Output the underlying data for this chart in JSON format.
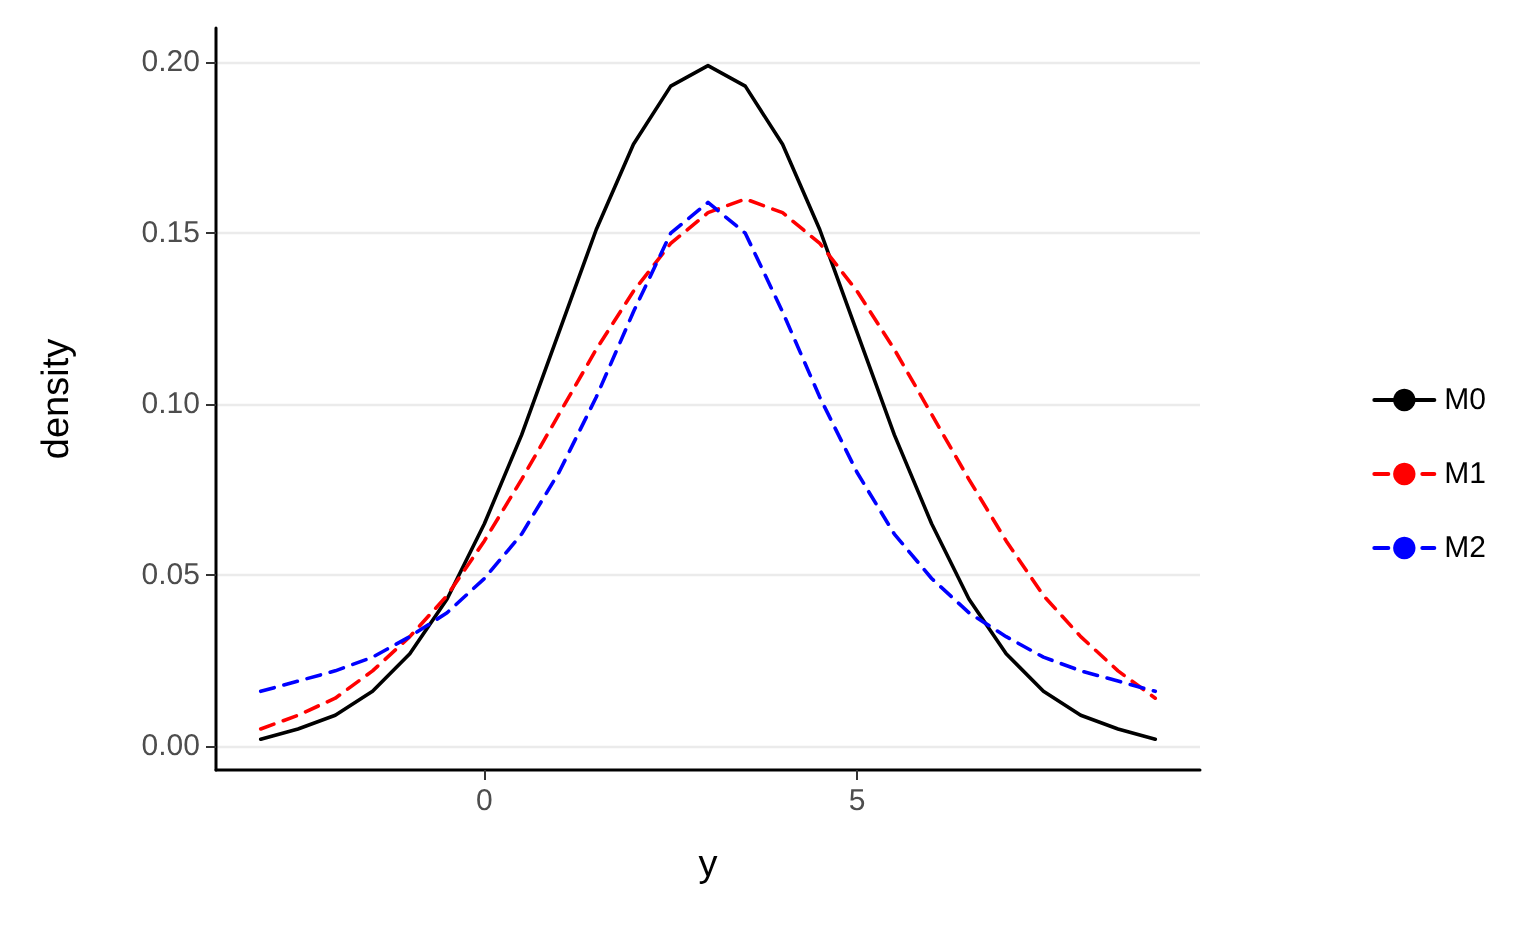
{
  "chart_data": {
    "type": "line",
    "xlabel": "y",
    "ylabel": "density",
    "x": [
      -3,
      -2.5,
      -2,
      -1.5,
      -1,
      -0.5,
      0,
      0.5,
      1,
      1.5,
      2,
      2.5,
      3,
      3.5,
      4,
      4.5,
      5,
      5.5,
      6,
      6.5,
      7,
      7.5,
      8,
      8.5,
      9
    ],
    "series": [
      {
        "name": "M0",
        "color": "#000000",
        "line_style": "solid",
        "values": [
          0.002,
          0.005,
          0.009,
          0.016,
          0.027,
          0.043,
          0.065,
          0.091,
          0.121,
          0.151,
          0.176,
          0.193,
          0.199,
          0.193,
          0.176,
          0.151,
          0.121,
          0.091,
          0.065,
          0.043,
          0.027,
          0.016,
          0.009,
          0.005,
          0.002
        ]
      },
      {
        "name": "M1",
        "color": "#ff0000",
        "line_style": "dashed",
        "values": [
          0.005,
          0.009,
          0.014,
          0.022,
          0.032,
          0.044,
          0.06,
          0.078,
          0.097,
          0.116,
          0.133,
          0.147,
          0.156,
          0.16,
          0.156,
          0.147,
          0.133,
          0.116,
          0.097,
          0.078,
          0.06,
          0.044,
          0.032,
          0.022,
          0.014
        ]
      },
      {
        "name": "M2",
        "color": "#0000ff",
        "line_style": "dashed",
        "values": [
          0.016,
          0.019,
          0.022,
          0.026,
          0.032,
          0.039,
          0.049,
          0.062,
          0.08,
          0.102,
          0.127,
          0.15,
          0.159,
          0.15,
          0.127,
          0.102,
          0.08,
          0.062,
          0.049,
          0.039,
          0.032,
          0.026,
          0.022,
          0.019,
          0.016
        ]
      }
    ],
    "xlim": [
      -3.6,
      9.6
    ],
    "xticks": [
      0,
      5
    ],
    "ylim": [
      -0.007,
      0.21
    ],
    "yticks": [
      {
        "value": 0,
        "label": "0.00"
      },
      {
        "value": 0.05,
        "label": "0.05"
      },
      {
        "value": 0.1,
        "label": "0.10"
      },
      {
        "value": 0.15,
        "label": "0.15"
      },
      {
        "value": 0.2,
        "label": "0.20"
      }
    ],
    "grid": "y",
    "legend": "right"
  }
}
